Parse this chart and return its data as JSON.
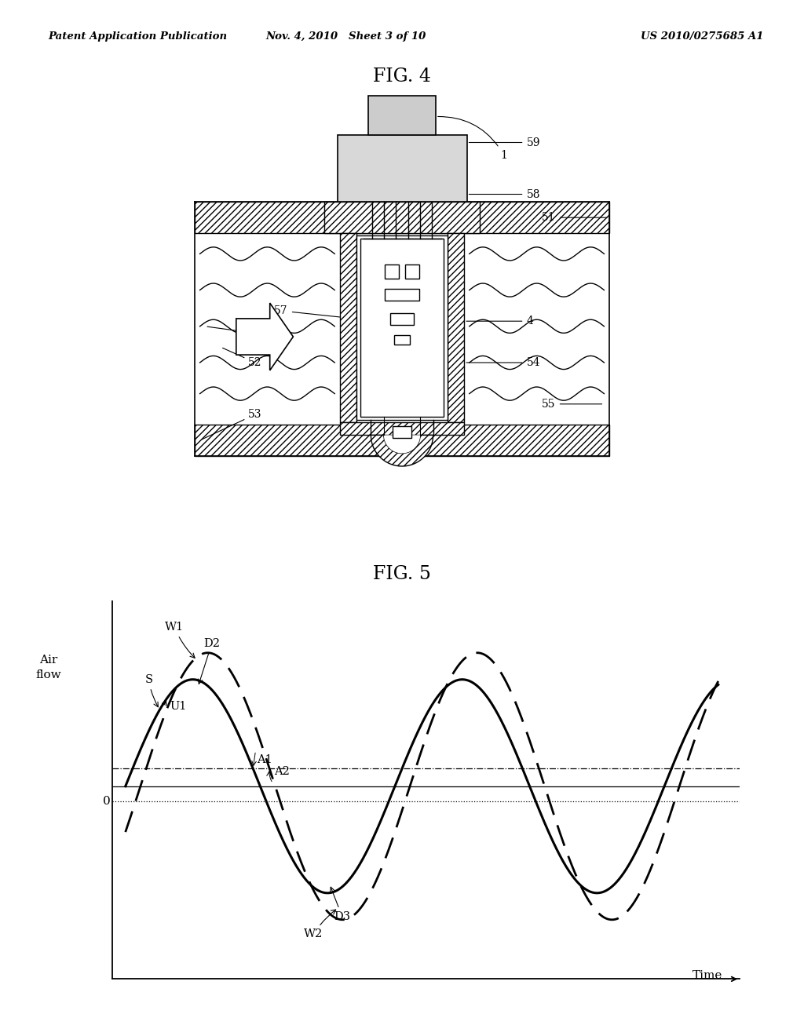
{
  "bg_color": "#ffffff",
  "header_left": "Patent Application Publication",
  "header_center": "Nov. 4, 2010   Sheet 3 of 10",
  "header_right": "US 2010/0275685 A1",
  "fig4_title": "FIG. 4",
  "fig5_title": "FIG. 5",
  "fig5_ylabel": "Air\nflow",
  "fig5_xlabel": "Time",
  "fig5_zero_label": "0"
}
